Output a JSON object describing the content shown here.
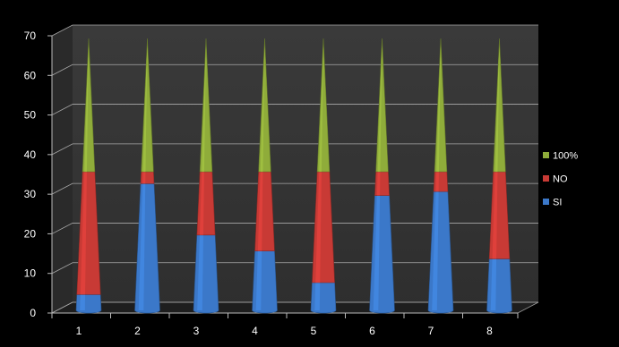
{
  "chart_data": {
    "type": "bar",
    "title": "",
    "xlabel": "",
    "ylabel": "",
    "ylim": [
      0,
      70
    ],
    "yticks": [
      0,
      10,
      20,
      30,
      40,
      50,
      60,
      70
    ],
    "grid": true,
    "stacked": true,
    "legend_position": "right",
    "categories": [
      "1",
      "2",
      "3",
      "4",
      "5",
      "6",
      "7",
      "8"
    ],
    "series": [
      {
        "name": "SI",
        "color": "#3b78c9",
        "values": [
          4,
          32,
          19,
          15,
          7,
          29,
          30,
          13
        ]
      },
      {
        "name": "NO",
        "color": "#c83a35",
        "values": [
          31,
          3,
          16,
          20,
          28,
          6,
          5,
          22
        ]
      },
      {
        "name": "100%",
        "color": "#8fac3a",
        "values": [
          35,
          35,
          35,
          35,
          35,
          35,
          35,
          35
        ]
      }
    ]
  }
}
